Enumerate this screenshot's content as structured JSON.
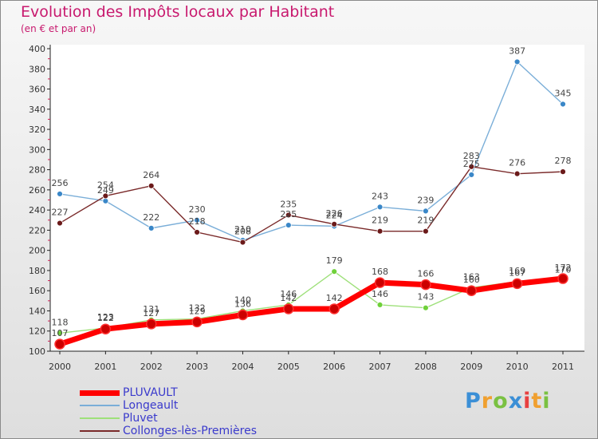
{
  "chart_data": {
    "type": "line",
    "title": "Evolution des Impôts locaux par Habitant",
    "subtitle": "(en € et par an)",
    "categories": [
      "2000",
      "2001",
      "2002",
      "2003",
      "2004",
      "2005",
      "2006",
      "2007",
      "2008",
      "2009",
      "2010",
      "2011"
    ],
    "ylim": [
      100,
      400
    ],
    "yticks": [
      100,
      120,
      140,
      160,
      180,
      200,
      220,
      240,
      260,
      280,
      300,
      320,
      340,
      360,
      380,
      400
    ],
    "grid": false,
    "legend_position": "bottom-left",
    "series": [
      {
        "name": "PLUVAULT",
        "color": "#ff0000",
        "marker": "#cc0000",
        "emphasis": true,
        "values": [
          107,
          122,
          127,
          129,
          136,
          142,
          142,
          168,
          166,
          160,
          167,
          172
        ]
      },
      {
        "name": "Longeault",
        "color": "#7aaed8",
        "marker": "#3a87c8",
        "emphasis": false,
        "values": [
          256,
          249,
          222,
          230,
          210,
          225,
          224,
          243,
          239,
          275,
          387,
          345
        ]
      },
      {
        "name": "Pluvet",
        "color": "#9ee07a",
        "marker": "#6fd13a",
        "emphasis": false,
        "values": [
          118,
          123,
          131,
          132,
          140,
          146,
          179,
          146,
          143,
          163,
          169,
          170
        ]
      },
      {
        "name": "Collonges-lès-Premières",
        "color": "#7a2a2a",
        "marker": "#6b1a1a",
        "emphasis": false,
        "values": [
          227,
          254,
          264,
          218,
          208,
          235,
          226,
          219,
          219,
          283,
          276,
          278
        ]
      }
    ]
  },
  "logo": {
    "letters": [
      "P",
      "r",
      "o",
      "x",
      "i",
      "t",
      "i"
    ],
    "colors": [
      "#3b8fd6",
      "#f0a030",
      "#7ac142",
      "#3b8fd6",
      "#e84040",
      "#f0a030",
      "#7ac142"
    ]
  }
}
